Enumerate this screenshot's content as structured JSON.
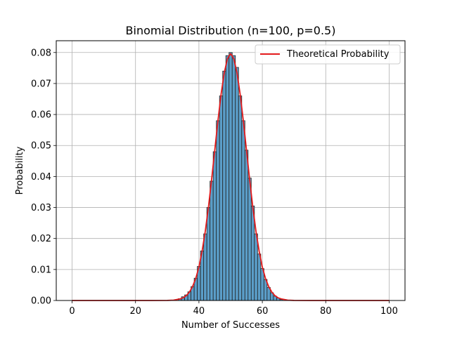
{
  "chart_data": {
    "type": "bar",
    "title": "Binomial Distribution (n=100, p=0.5)",
    "xlabel": "Number of Successes",
    "ylabel": "Probability",
    "xlim": [
      -5,
      105
    ],
    "ylim": [
      0,
      0.0838
    ],
    "x_ticks": [
      0,
      20,
      40,
      60,
      80,
      100
    ],
    "y_ticks": [
      0.0,
      0.01,
      0.02,
      0.03,
      0.04,
      0.05,
      0.06,
      0.07,
      0.08
    ],
    "y_tick_labels": [
      "0.00",
      "0.01",
      "0.02",
      "0.03",
      "0.04",
      "0.05",
      "0.06",
      "0.07",
      "0.08"
    ],
    "grid": true,
    "legend": {
      "position": "top-right",
      "entries": [
        "Theoretical Probability"
      ]
    },
    "histogram": {
      "x": [
        34,
        35,
        36,
        37,
        38,
        39,
        40,
        41,
        42,
        43,
        44,
        45,
        46,
        47,
        48,
        49,
        50,
        51,
        52,
        53,
        54,
        55,
        56,
        57,
        58,
        59,
        60,
        61,
        62,
        63,
        64,
        65,
        66
      ],
      "values": [
        0.0006,
        0.0012,
        0.0018,
        0.0028,
        0.0045,
        0.0072,
        0.011,
        0.016,
        0.0215,
        0.03,
        0.0385,
        0.048,
        0.058,
        0.066,
        0.074,
        0.079,
        0.08,
        0.079,
        0.0752,
        0.066,
        0.058,
        0.0485,
        0.0395,
        0.0305,
        0.0215,
        0.015,
        0.0103,
        0.0068,
        0.0042,
        0.0025,
        0.0014,
        0.0008,
        0.0003
      ]
    },
    "series": [
      {
        "name": "Theoretical Probability",
        "x": [
          0,
          20,
          25,
          30,
          32,
          34,
          35,
          36,
          37,
          38,
          39,
          40,
          41,
          42,
          43,
          44,
          45,
          46,
          47,
          48,
          49,
          50,
          51,
          52,
          53,
          54,
          55,
          56,
          57,
          58,
          59,
          60,
          61,
          62,
          63,
          64,
          65,
          66,
          68,
          70,
          75,
          80,
          100
        ],
        "values": [
          0,
          0,
          2e-08,
          2.3e-05,
          0.00011,
          0.0005,
          0.00086,
          0.00155,
          0.0027,
          0.0045,
          0.0071,
          0.0108,
          0.0159,
          0.0223,
          0.0301,
          0.039,
          0.0485,
          0.058,
          0.0666,
          0.0735,
          0.078,
          0.0796,
          0.078,
          0.0735,
          0.0666,
          0.058,
          0.0485,
          0.039,
          0.0301,
          0.0223,
          0.0159,
          0.0108,
          0.0071,
          0.0045,
          0.0027,
          0.00155,
          0.00086,
          0.0005,
          0.00011,
          2.3e-05,
          2e-08,
          0,
          0
        ],
        "color": "#e31a1c"
      }
    ],
    "bar_color": "#5b9ec9",
    "bar_edge_color": "#222222"
  }
}
